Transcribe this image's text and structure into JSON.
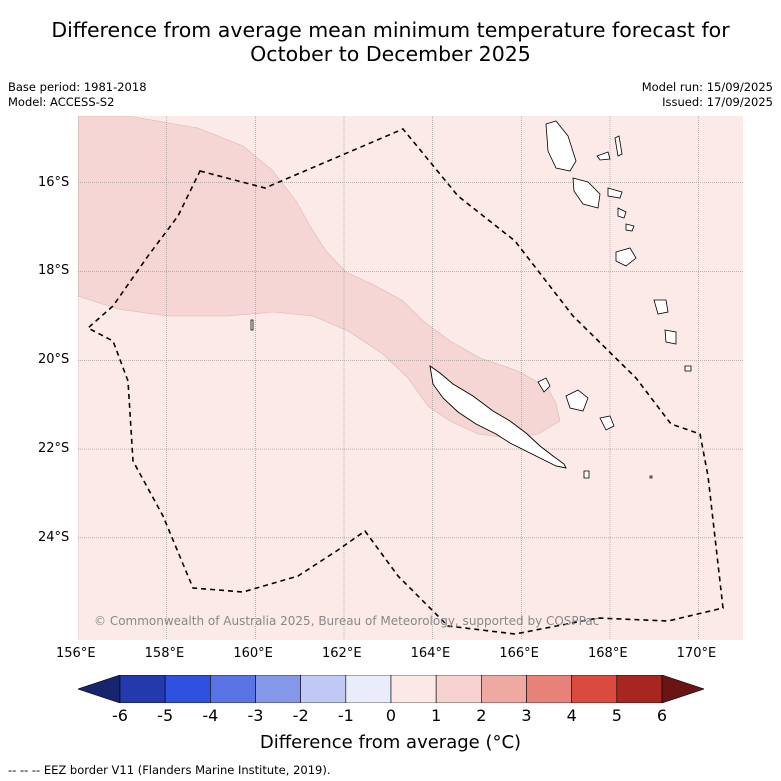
{
  "title_line1": "Difference from average mean minimum temperature forecast for",
  "title_line2": "October to December 2025",
  "meta_left": {
    "base_period": "Base period: 1981-2018",
    "model": "Model: ACCESS-S2"
  },
  "meta_right": {
    "model_run": "Model run: 15/09/2025",
    "issued": "Issued: 17/09/2025"
  },
  "copyright": "© Commonwealth of Australia 2025, Bureau of Meteorology, supported by COSPPac",
  "footnote": "--  --  -- EEZ border V11 (Flanders Marine Institute, 2019).",
  "map": {
    "lon_range": [
      156,
      171
    ],
    "lat_range": [
      -26.3,
      -14.5
    ],
    "lon_ticks": [
      "156°E",
      "158°E",
      "160°E",
      "162°E",
      "164°E",
      "166°E",
      "168°E",
      "170°E"
    ],
    "lat_ticks": [
      "16°S",
      "18°S",
      "20°S",
      "22°S",
      "24°S"
    ],
    "background_category": "0 to 1",
    "highlight_category": "1 to 2",
    "gridlines": true
  },
  "colorbar": {
    "title": "Difference from average (°C)",
    "ticks": [
      "-6",
      "-5",
      "-4",
      "-3",
      "-2",
      "-1",
      "0",
      "1",
      "2",
      "3",
      "4",
      "5",
      "6"
    ],
    "colors": [
      "#17246e",
      "#2339ad",
      "#3050e0",
      "#5a72e4",
      "#8597e8",
      "#c0c8f4",
      "#e9ecfa",
      "#fce9e6",
      "#f6d3d0",
      "#eea9a3",
      "#e6827a",
      "#db4a3f",
      "#a82620",
      "#6b1414"
    ]
  }
}
